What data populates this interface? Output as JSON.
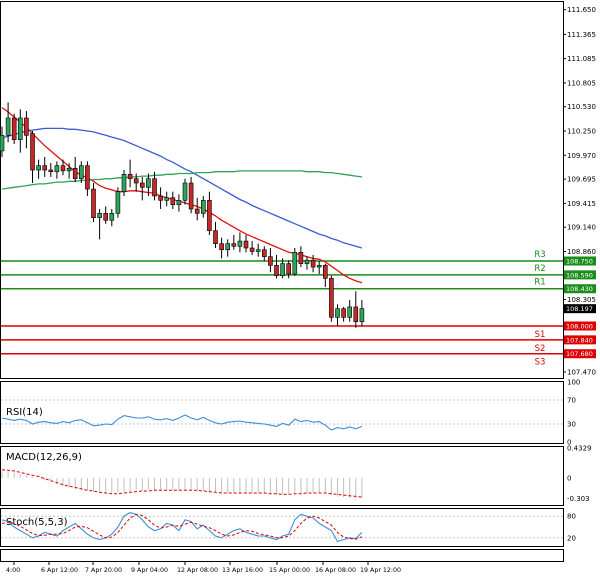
{
  "chart_data": [
    {
      "type": "candlestick",
      "panel": "price",
      "y_ticks": [
        "111.650",
        "111.365",
        "111.085",
        "110.805",
        "110.530",
        "110.250",
        "109.970",
        "109.695",
        "109.415",
        "109.140",
        "108.860",
        "108.305",
        "107.470"
      ],
      "ylim": [
        107.4,
        111.75
      ],
      "current_price": "108.197",
      "candles": [
        {
          "o": 110.02,
          "h": 110.3,
          "l": 109.95,
          "c": 110.2
        },
        {
          "o": 110.2,
          "h": 110.58,
          "l": 110.12,
          "c": 110.4
        },
        {
          "o": 110.4,
          "h": 110.45,
          "l": 110.1,
          "c": 110.15
        },
        {
          "o": 110.15,
          "h": 110.5,
          "l": 110.0,
          "c": 110.4
        },
        {
          "o": 110.4,
          "h": 110.48,
          "l": 110.05,
          "c": 110.2
        },
        {
          "o": 110.22,
          "h": 110.25,
          "l": 109.65,
          "c": 109.8
        },
        {
          "o": 109.8,
          "h": 109.92,
          "l": 109.7,
          "c": 109.85
        },
        {
          "o": 109.85,
          "h": 109.95,
          "l": 109.72,
          "c": 109.8
        },
        {
          "o": 109.8,
          "h": 109.88,
          "l": 109.72,
          "c": 109.78
        },
        {
          "o": 109.78,
          "h": 109.9,
          "l": 109.7,
          "c": 109.85
        },
        {
          "o": 109.85,
          "h": 109.92,
          "l": 109.74,
          "c": 109.79
        },
        {
          "o": 109.79,
          "h": 109.88,
          "l": 109.7,
          "c": 109.82
        },
        {
          "o": 109.82,
          "h": 109.95,
          "l": 109.66,
          "c": 109.7
        },
        {
          "o": 109.7,
          "h": 109.9,
          "l": 109.65,
          "c": 109.85
        },
        {
          "o": 109.85,
          "h": 109.9,
          "l": 109.5,
          "c": 109.58
        },
        {
          "o": 109.58,
          "h": 109.65,
          "l": 109.2,
          "c": 109.25
        },
        {
          "o": 109.25,
          "h": 109.35,
          "l": 109.0,
          "c": 109.3
        },
        {
          "o": 109.3,
          "h": 109.38,
          "l": 109.18,
          "c": 109.22
        },
        {
          "o": 109.22,
          "h": 109.35,
          "l": 109.15,
          "c": 109.3
        },
        {
          "o": 109.3,
          "h": 109.6,
          "l": 109.25,
          "c": 109.55
        },
        {
          "o": 109.55,
          "h": 109.8,
          "l": 109.5,
          "c": 109.75
        },
        {
          "o": 109.75,
          "h": 109.92,
          "l": 109.6,
          "c": 109.7
        },
        {
          "o": 109.7,
          "h": 109.76,
          "l": 109.55,
          "c": 109.65
        },
        {
          "o": 109.65,
          "h": 109.72,
          "l": 109.45,
          "c": 109.6
        },
        {
          "o": 109.6,
          "h": 109.76,
          "l": 109.5,
          "c": 109.7
        },
        {
          "o": 109.7,
          "h": 109.78,
          "l": 109.45,
          "c": 109.5
        },
        {
          "o": 109.5,
          "h": 109.6,
          "l": 109.35,
          "c": 109.45
        },
        {
          "o": 109.45,
          "h": 109.55,
          "l": 109.38,
          "c": 109.48
        },
        {
          "o": 109.48,
          "h": 109.55,
          "l": 109.35,
          "c": 109.4
        },
        {
          "o": 109.4,
          "h": 109.52,
          "l": 109.32,
          "c": 109.45
        },
        {
          "o": 109.45,
          "h": 109.7,
          "l": 109.4,
          "c": 109.65
        },
        {
          "o": 109.65,
          "h": 109.72,
          "l": 109.3,
          "c": 109.35
        },
        {
          "o": 109.35,
          "h": 109.48,
          "l": 109.22,
          "c": 109.3
        },
        {
          "o": 109.3,
          "h": 109.5,
          "l": 109.25,
          "c": 109.45
        },
        {
          "o": 109.45,
          "h": 109.55,
          "l": 109.05,
          "c": 109.1
        },
        {
          "o": 109.1,
          "h": 109.2,
          "l": 108.9,
          "c": 108.95
        },
        {
          "o": 108.95,
          "h": 109.02,
          "l": 108.78,
          "c": 108.88
        },
        {
          "o": 108.88,
          "h": 109.0,
          "l": 108.8,
          "c": 108.95
        },
        {
          "o": 108.95,
          "h": 109.05,
          "l": 108.88,
          "c": 108.92
        },
        {
          "o": 108.92,
          "h": 109.08,
          "l": 108.85,
          "c": 108.98
        },
        {
          "o": 108.98,
          "h": 109.05,
          "l": 108.85,
          "c": 108.9
        },
        {
          "o": 108.9,
          "h": 108.98,
          "l": 108.82,
          "c": 108.86
        },
        {
          "o": 108.86,
          "h": 108.95,
          "l": 108.8,
          "c": 108.88
        },
        {
          "o": 108.88,
          "h": 108.92,
          "l": 108.75,
          "c": 108.8
        },
        {
          "o": 108.8,
          "h": 108.9,
          "l": 108.62,
          "c": 108.7
        },
        {
          "o": 108.7,
          "h": 108.82,
          "l": 108.55,
          "c": 108.58
        },
        {
          "o": 108.58,
          "h": 108.78,
          "l": 108.55,
          "c": 108.72
        },
        {
          "o": 108.72,
          "h": 108.76,
          "l": 108.55,
          "c": 108.6
        },
        {
          "o": 108.6,
          "h": 108.9,
          "l": 108.58,
          "c": 108.85
        },
        {
          "o": 108.85,
          "h": 108.92,
          "l": 108.68,
          "c": 108.72
        },
        {
          "o": 108.72,
          "h": 108.8,
          "l": 108.65,
          "c": 108.76
        },
        {
          "o": 108.76,
          "h": 108.82,
          "l": 108.62,
          "c": 108.68
        },
        {
          "o": 108.68,
          "h": 108.75,
          "l": 108.6,
          "c": 108.7
        },
        {
          "o": 108.7,
          "h": 108.72,
          "l": 108.45,
          "c": 108.55
        },
        {
          "o": 108.55,
          "h": 108.58,
          "l": 108.05,
          "c": 108.1
        },
        {
          "o": 108.1,
          "h": 108.25,
          "l": 108.0,
          "c": 108.2
        },
        {
          "o": 108.2,
          "h": 108.22,
          "l": 108.05,
          "c": 108.1
        },
        {
          "o": 108.1,
          "h": 108.3,
          "l": 108.05,
          "c": 108.22
        },
        {
          "o": 108.22,
          "h": 108.4,
          "l": 107.98,
          "c": 108.05
        },
        {
          "o": 108.05,
          "h": 108.3,
          "l": 108.0,
          "c": 108.2
        }
      ],
      "moving_averages": [
        {
          "color": "#e01010",
          "values": [
            110.52,
            110.47,
            110.41,
            110.35,
            110.29,
            110.22,
            110.15,
            110.08,
            110.02,
            109.96,
            109.9,
            109.84,
            109.78,
            109.74,
            109.71,
            109.67,
            109.62,
            109.59,
            109.57,
            109.55,
            109.55,
            109.56,
            109.56,
            109.55,
            109.54,
            109.53,
            109.5,
            109.48,
            109.46,
            109.44,
            109.42,
            109.4,
            109.38,
            109.35,
            109.31,
            109.27,
            109.22,
            109.18,
            109.14,
            109.1,
            109.06,
            109.03,
            109.0,
            108.97,
            108.94,
            108.91,
            108.88,
            108.85,
            108.84,
            108.82,
            108.8,
            108.78,
            108.77,
            108.74,
            108.69,
            108.64,
            108.59,
            108.55,
            108.52,
            108.5
          ]
        },
        {
          "color": "#3a5bd8",
          "values": [
            110.17,
            110.19,
            110.21,
            110.23,
            110.25,
            110.26,
            110.27,
            110.28,
            110.28,
            110.28,
            110.28,
            110.27,
            110.27,
            110.26,
            110.25,
            110.24,
            110.22,
            110.2,
            110.18,
            110.16,
            110.14,
            110.11,
            110.08,
            110.05,
            110.02,
            109.99,
            109.96,
            109.92,
            109.89,
            109.85,
            109.81,
            109.78,
            109.74,
            109.7,
            109.66,
            109.62,
            109.58,
            109.54,
            109.5,
            109.46,
            109.43,
            109.39,
            109.36,
            109.33,
            109.3,
            109.27,
            109.24,
            109.21,
            109.18,
            109.15,
            109.12,
            109.09,
            109.06,
            109.04,
            109.01,
            108.99,
            108.96,
            108.94,
            108.92,
            108.9
          ]
        },
        {
          "color": "#2ea35a",
          "values": [
            109.58,
            109.59,
            109.6,
            109.61,
            109.62,
            109.63,
            109.64,
            109.64,
            109.65,
            109.66,
            109.66,
            109.67,
            109.67,
            109.68,
            109.68,
            109.69,
            109.69,
            109.7,
            109.7,
            109.71,
            109.71,
            109.72,
            109.72,
            109.73,
            109.73,
            109.74,
            109.74,
            109.75,
            109.75,
            109.76,
            109.76,
            109.76,
            109.77,
            109.77,
            109.77,
            109.78,
            109.78,
            109.78,
            109.78,
            109.79,
            109.79,
            109.79,
            109.79,
            109.79,
            109.79,
            109.79,
            109.79,
            109.79,
            109.79,
            109.79,
            109.78,
            109.78,
            109.78,
            109.77,
            109.77,
            109.76,
            109.75,
            109.74,
            109.73,
            109.72
          ]
        }
      ],
      "levels": [
        {
          "label": "R3",
          "price": "108.750",
          "value": 108.75,
          "color": "#1a8c1a"
        },
        {
          "label": "R2",
          "price": "108.590",
          "value": 108.59,
          "color": "#1a8c1a"
        },
        {
          "label": "R1",
          "price": "108.430",
          "value": 108.43,
          "color": "#1a8c1a"
        },
        {
          "label": "S1",
          "price": "108.000",
          "value": 108.0,
          "color": "#dd0000"
        },
        {
          "label": "S2",
          "price": "107.840",
          "value": 107.84,
          "color": "#dd0000"
        },
        {
          "label": "S3",
          "price": "107.680",
          "value": 107.68,
          "color": "#dd0000"
        }
      ],
      "x_tick_labels": [
        "4:00",
        "6 Apr 12:00",
        "7 Apr 20:00",
        "9 Apr 04:00",
        "12 Apr 08:00",
        "13 Apr 16:00",
        "15 Apr 00:00",
        "16 Apr 08:00",
        "19 Apr 12:00"
      ]
    },
    {
      "type": "line",
      "panel": "rsi",
      "title": "RSI(14)",
      "y_ticks": [
        "100",
        "70",
        "30",
        "0"
      ],
      "ylim": [
        0,
        100
      ],
      "color": "#3b8fd8",
      "values": [
        40,
        38,
        36,
        38,
        36,
        30,
        33,
        34,
        32,
        31,
        34,
        32,
        36,
        37,
        32,
        27,
        28,
        30,
        29,
        38,
        44,
        42,
        40,
        40,
        42,
        38,
        37,
        39,
        36,
        40,
        45,
        40,
        37,
        41,
        36,
        32,
        30,
        33,
        34,
        35,
        33,
        32,
        31,
        30,
        28,
        26,
        31,
        28,
        38,
        34,
        36,
        33,
        34,
        28,
        20,
        24,
        22,
        25,
        22,
        26
      ]
    },
    {
      "type": "line",
      "panel": "macd",
      "title": "MACD(12,26,9)",
      "y_ticks": [
        "0.4329",
        "0",
        "-0.303"
      ],
      "ylim": [
        -0.38,
        0.45
      ],
      "histogram_color": "#c0c0c0",
      "signal_color": "#dd0000",
      "histogram": [
        0.1,
        0.1,
        0.08,
        0.06,
        0.04,
        0.02,
        0.0,
        -0.03,
        -0.06,
        -0.09,
        -0.12,
        -0.14,
        -0.16,
        -0.17,
        -0.18,
        -0.2,
        -0.21,
        -0.22,
        -0.22,
        -0.21,
        -0.2,
        -0.19,
        -0.18,
        -0.18,
        -0.17,
        -0.17,
        -0.18,
        -0.18,
        -0.18,
        -0.18,
        -0.17,
        -0.18,
        -0.19,
        -0.19,
        -0.2,
        -0.21,
        -0.22,
        -0.22,
        -0.23,
        -0.22,
        -0.22,
        -0.22,
        -0.22,
        -0.23,
        -0.23,
        -0.24,
        -0.24,
        -0.23,
        -0.22,
        -0.22,
        -0.22,
        -0.22,
        -0.21,
        -0.22,
        -0.25,
        -0.27,
        -0.28,
        -0.29,
        -0.3,
        -0.3
      ],
      "signal": [
        0.12,
        0.11,
        0.1,
        0.08,
        0.06,
        0.04,
        0.02,
        -0.01,
        -0.04,
        -0.07,
        -0.1,
        -0.12,
        -0.14,
        -0.16,
        -0.18,
        -0.19,
        -0.21,
        -0.22,
        -0.23,
        -0.23,
        -0.22,
        -0.21,
        -0.2,
        -0.19,
        -0.19,
        -0.18,
        -0.18,
        -0.18,
        -0.18,
        -0.18,
        -0.18,
        -0.18,
        -0.18,
        -0.19,
        -0.2,
        -0.21,
        -0.22,
        -0.22,
        -0.22,
        -0.22,
        -0.22,
        -0.22,
        -0.22,
        -0.22,
        -0.23,
        -0.23,
        -0.24,
        -0.24,
        -0.23,
        -0.23,
        -0.22,
        -0.22,
        -0.22,
        -0.22,
        -0.23,
        -0.24,
        -0.25,
        -0.26,
        -0.27,
        -0.28
      ]
    },
    {
      "type": "line",
      "panel": "stoch",
      "title": "Stoch(5,5,3)",
      "y_ticks": [
        "80",
        "20"
      ],
      "ylim": [
        0,
        100
      ],
      "main_color": "#3b8fd8",
      "signal_color": "#dd0000",
      "main": [
        70,
        65,
        50,
        40,
        30,
        20,
        25,
        35,
        30,
        25,
        40,
        50,
        60,
        45,
        30,
        20,
        15,
        20,
        30,
        50,
        80,
        90,
        85,
        70,
        50,
        40,
        45,
        60,
        55,
        40,
        70,
        65,
        45,
        55,
        40,
        25,
        20,
        30,
        40,
        45,
        35,
        30,
        25,
        25,
        20,
        15,
        25,
        30,
        70,
        85,
        80,
        75,
        60,
        50,
        40,
        10,
        15,
        20,
        18,
        35
      ],
      "signal": [
        60,
        63,
        60,
        52,
        42,
        32,
        26,
        27,
        30,
        30,
        32,
        40,
        50,
        52,
        48,
        38,
        28,
        20,
        22,
        35,
        55,
        75,
        85,
        82,
        70,
        55,
        47,
        50,
        55,
        52,
        58,
        63,
        58,
        52,
        48,
        40,
        30,
        25,
        28,
        35,
        40,
        38,
        32,
        28,
        25,
        20,
        20,
        25,
        40,
        60,
        75,
        80,
        75,
        65,
        55,
        35,
        22,
        18,
        16,
        23
      ]
    }
  ]
}
